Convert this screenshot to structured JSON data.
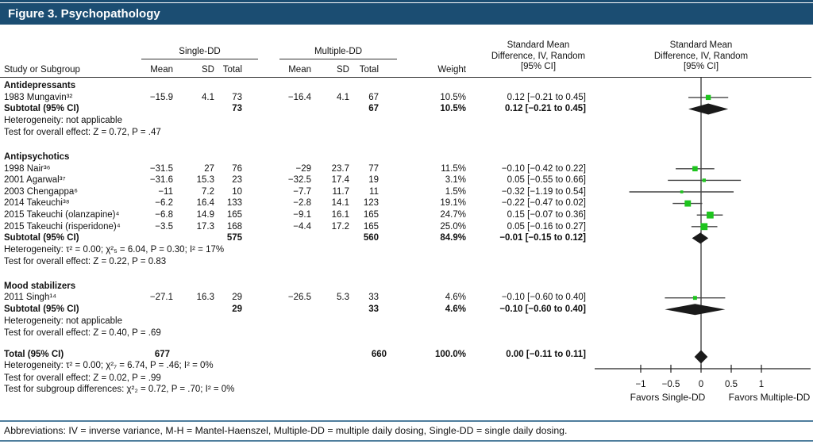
{
  "title": "Figure 3. Psychopathology",
  "table": {
    "group1_header": "Single-DD",
    "group2_header": "Multiple-DD",
    "col_study": "Study or Subgroup",
    "col_mean1": "Mean",
    "col_sd1": "SD",
    "col_total1": "Total",
    "col_mean2": "Mean",
    "col_sd2": "SD",
    "col_total2": "Total",
    "col_weight": "Weight",
    "smd_header_lines": [
      "Standard Mean",
      "Difference, IV, Random",
      "[95% CI]"
    ]
  },
  "footer": "Abbreviations: IV = inverse variance, M-H = Mantel-Haenszel, Multiple-DD = multiple daily dosing, Single-DD = single daily dosing.",
  "colors": {
    "title_bar": "#1b4d72",
    "marker_green": "#1ec41e",
    "rule_blue": "#4f7e9d",
    "diamond_black": "#1a1a1a"
  },
  "chart_data": {
    "type": "forest",
    "x_ticks": [
      -1,
      -0.5,
      0,
      0.5,
      1
    ],
    "xlim": [
      -1.25,
      1.8
    ],
    "favors_left": "Favors Single-DD",
    "favors_right": "Favors Multiple-DD",
    "sections": [
      {
        "label": "Antidepressants",
        "studies": [
          {
            "name": "1983 Mungavin³²",
            "mean1": "−15.9",
            "sd1": "4.1",
            "total1": "73",
            "mean2": "−16.4",
            "sd2": "4.1",
            "total2": "67",
            "weight": "10.5%",
            "ci_text": "0.12 [−0.21 to 0.45]",
            "smd": 0.12,
            "lo": -0.21,
            "hi": 0.45,
            "w": 10.5
          }
        ],
        "subtotal": {
          "label": "Subtotal (95% CI)",
          "total1": "73",
          "total2": "67",
          "weight": "10.5%",
          "ci_text": "0.12 [−0.21 to 0.45]",
          "smd": 0.12,
          "lo": -0.21,
          "hi": 0.45
        },
        "het": "Heterogeneity: not applicable",
        "test": "Test for overall effect: Z = 0.72, P = .47"
      },
      {
        "label": "Antipsychotics",
        "studies": [
          {
            "name": "1998 Nair³⁶",
            "mean1": "−31.5",
            "sd1": "27",
            "total1": "76",
            "mean2": "−29",
            "sd2": "23.7",
            "total2": "77",
            "weight": "11.5%",
            "ci_text": "−0.10 [−0.42 to 0.22]",
            "smd": -0.1,
            "lo": -0.42,
            "hi": 0.22,
            "w": 11.5
          },
          {
            "name": "2001 Agarwal³⁷",
            "mean1": "−31.6",
            "sd1": "15.3",
            "total1": "23",
            "mean2": "−32.5",
            "sd2": "17.4",
            "total2": "19",
            "weight": "3.1%",
            "ci_text": "0.05 [−0.55 to 0.66]",
            "smd": 0.05,
            "lo": -0.55,
            "hi": 0.66,
            "w": 3.1
          },
          {
            "name": "2003 Chengappa⁶",
            "mean1": "−11",
            "sd1": "7.2",
            "total1": "10",
            "mean2": "−7.7",
            "sd2": "11.7",
            "total2": "11",
            "weight": "1.5%",
            "ci_text": "−0.32 [−1.19 to 0.54]",
            "smd": -0.32,
            "lo": -1.19,
            "hi": 0.54,
            "w": 1.5
          },
          {
            "name": "2014 Takeuchi³⁸",
            "mean1": "−6.2",
            "sd1": "16.4",
            "total1": "133",
            "mean2": "−2.8",
            "sd2": "14.1",
            "total2": "123",
            "weight": "19.1%",
            "ci_text": "−0.22 [−0.47 to 0.02]",
            "smd": -0.22,
            "lo": -0.47,
            "hi": 0.02,
            "w": 19.1
          },
          {
            "name": "2015 Takeuchi (olanzapine)⁴",
            "mean1": "−6.8",
            "sd1": "14.9",
            "total1": "165",
            "mean2": "−9.1",
            "sd2": "16.1",
            "total2": "165",
            "weight": "24.7%",
            "ci_text": "0.15 [−0.07 to 0.36]",
            "smd": 0.15,
            "lo": -0.07,
            "hi": 0.36,
            "w": 24.7
          },
          {
            "name": "2015 Takeuchi (risperidone)⁴",
            "mean1": "−3.5",
            "sd1": "17.3",
            "total1": "168",
            "mean2": "−4.4",
            "sd2": "17.2",
            "total2": "165",
            "weight": "25.0%",
            "ci_text": "0.05 [−0.16 to 0.27]",
            "smd": 0.05,
            "lo": -0.16,
            "hi": 0.27,
            "w": 25.0
          }
        ],
        "subtotal": {
          "label": "Subtotal (95% CI)",
          "total1": "575",
          "total2": "560",
          "weight": "84.9%",
          "ci_text": "−0.01 [−0.15 to 0.12]",
          "smd": -0.01,
          "lo": -0.15,
          "hi": 0.12
        },
        "het": "Heterogeneity: τ² = 0.00; χ²₅ = 6.04, P = 0.30; I² = 17%",
        "test": "Test for overall effect: Z = 0.22, P = 0.83"
      },
      {
        "label": "Mood stabilizers",
        "studies": [
          {
            "name": "2011 Singh¹⁴",
            "mean1": "−27.1",
            "sd1": "16.3",
            "total1": "29",
            "mean2": "−26.5",
            "sd2": "5.3",
            "total2": "33",
            "weight": "4.6%",
            "ci_text": "−0.10 [−0.60 to 0.40]",
            "smd": -0.1,
            "lo": -0.6,
            "hi": 0.4,
            "w": 4.6
          }
        ],
        "subtotal": {
          "label": "Subtotal (95% CI)",
          "total1": "29",
          "total2": "33",
          "weight": "4.6%",
          "ci_text": "−0.10 [−0.60 to 0.40]",
          "smd": -0.1,
          "lo": -0.6,
          "hi": 0.4
        },
        "het": "Heterogeneity: not applicable",
        "test": "Test for overall effect: Z = 0.40, P = .69"
      }
    ],
    "total": {
      "label": "Total (95% CI)",
      "total1": "677",
      "total2": "660",
      "weight": "100.0%",
      "ci_text": "0.00 [−0.11 to 0.11]",
      "smd": 0.0,
      "lo": -0.11,
      "hi": 0.11,
      "lines": [
        "Heterogeneity: τ² = 0.00; χ²₇ = 6.74, P = .46; I² = 0%",
        "Test for overall effect: Z = 0.02, P = .99",
        "Test for subgroup differences: χ²₂ = 0.72, P = .70; I² = 0%"
      ]
    }
  }
}
